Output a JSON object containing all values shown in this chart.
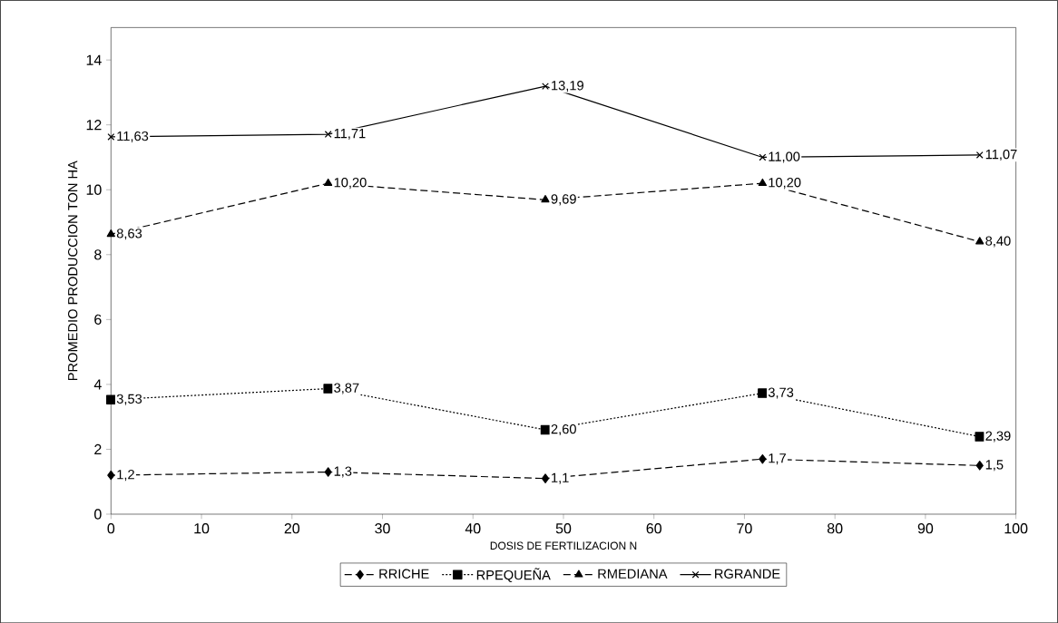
{
  "chart_data": {
    "type": "line",
    "xlabel": "DOSIS DE FERTILIZACION N",
    "ylabel": "PROMEDIO PRODUCCION TON HA",
    "x": [
      0,
      24,
      48,
      72,
      96
    ],
    "series": [
      {
        "name": "RRICHE",
        "color": "#000000",
        "values": [
          1.2,
          1.3,
          1.1,
          1.7,
          1.5
        ],
        "value_labels": [
          "1,2",
          "1,3",
          "1,1",
          "1,7",
          "1,5"
        ],
        "marker": "diamond",
        "line_style": "dashed"
      },
      {
        "name": "RPEQUEÑA",
        "color": "#000000",
        "values": [
          3.53,
          3.87,
          2.6,
          3.73,
          2.39
        ],
        "value_labels": [
          "3,53",
          "3,87",
          "2,60",
          "3,73",
          "2,39"
        ],
        "marker": "square",
        "line_style": "dotted"
      },
      {
        "name": "RMEDIANA",
        "color": "#000000",
        "values": [
          8.63,
          10.2,
          9.69,
          10.2,
          8.4
        ],
        "value_labels": [
          "8,63",
          "10,20",
          "9,69",
          "10,20",
          "8,40"
        ],
        "marker": "triangle",
        "line_style": "dashed"
      },
      {
        "name": "RGRANDE",
        "color": "#000000",
        "values": [
          11.63,
          11.71,
          13.19,
          11.0,
          11.07
        ],
        "value_labels": [
          "11,63",
          "11,71",
          "13,19",
          "11,00",
          "11,07"
        ],
        "marker": "cross",
        "line_style": "solid"
      }
    ],
    "xlim": [
      0,
      100
    ],
    "xticks": [
      0,
      10,
      20,
      30,
      40,
      50,
      60,
      70,
      80,
      90,
      100
    ],
    "ylim": [
      0,
      15
    ],
    "yticks": [
      0,
      2,
      4,
      6,
      8,
      10,
      12,
      14
    ],
    "grid": false,
    "legend": "bottom"
  }
}
